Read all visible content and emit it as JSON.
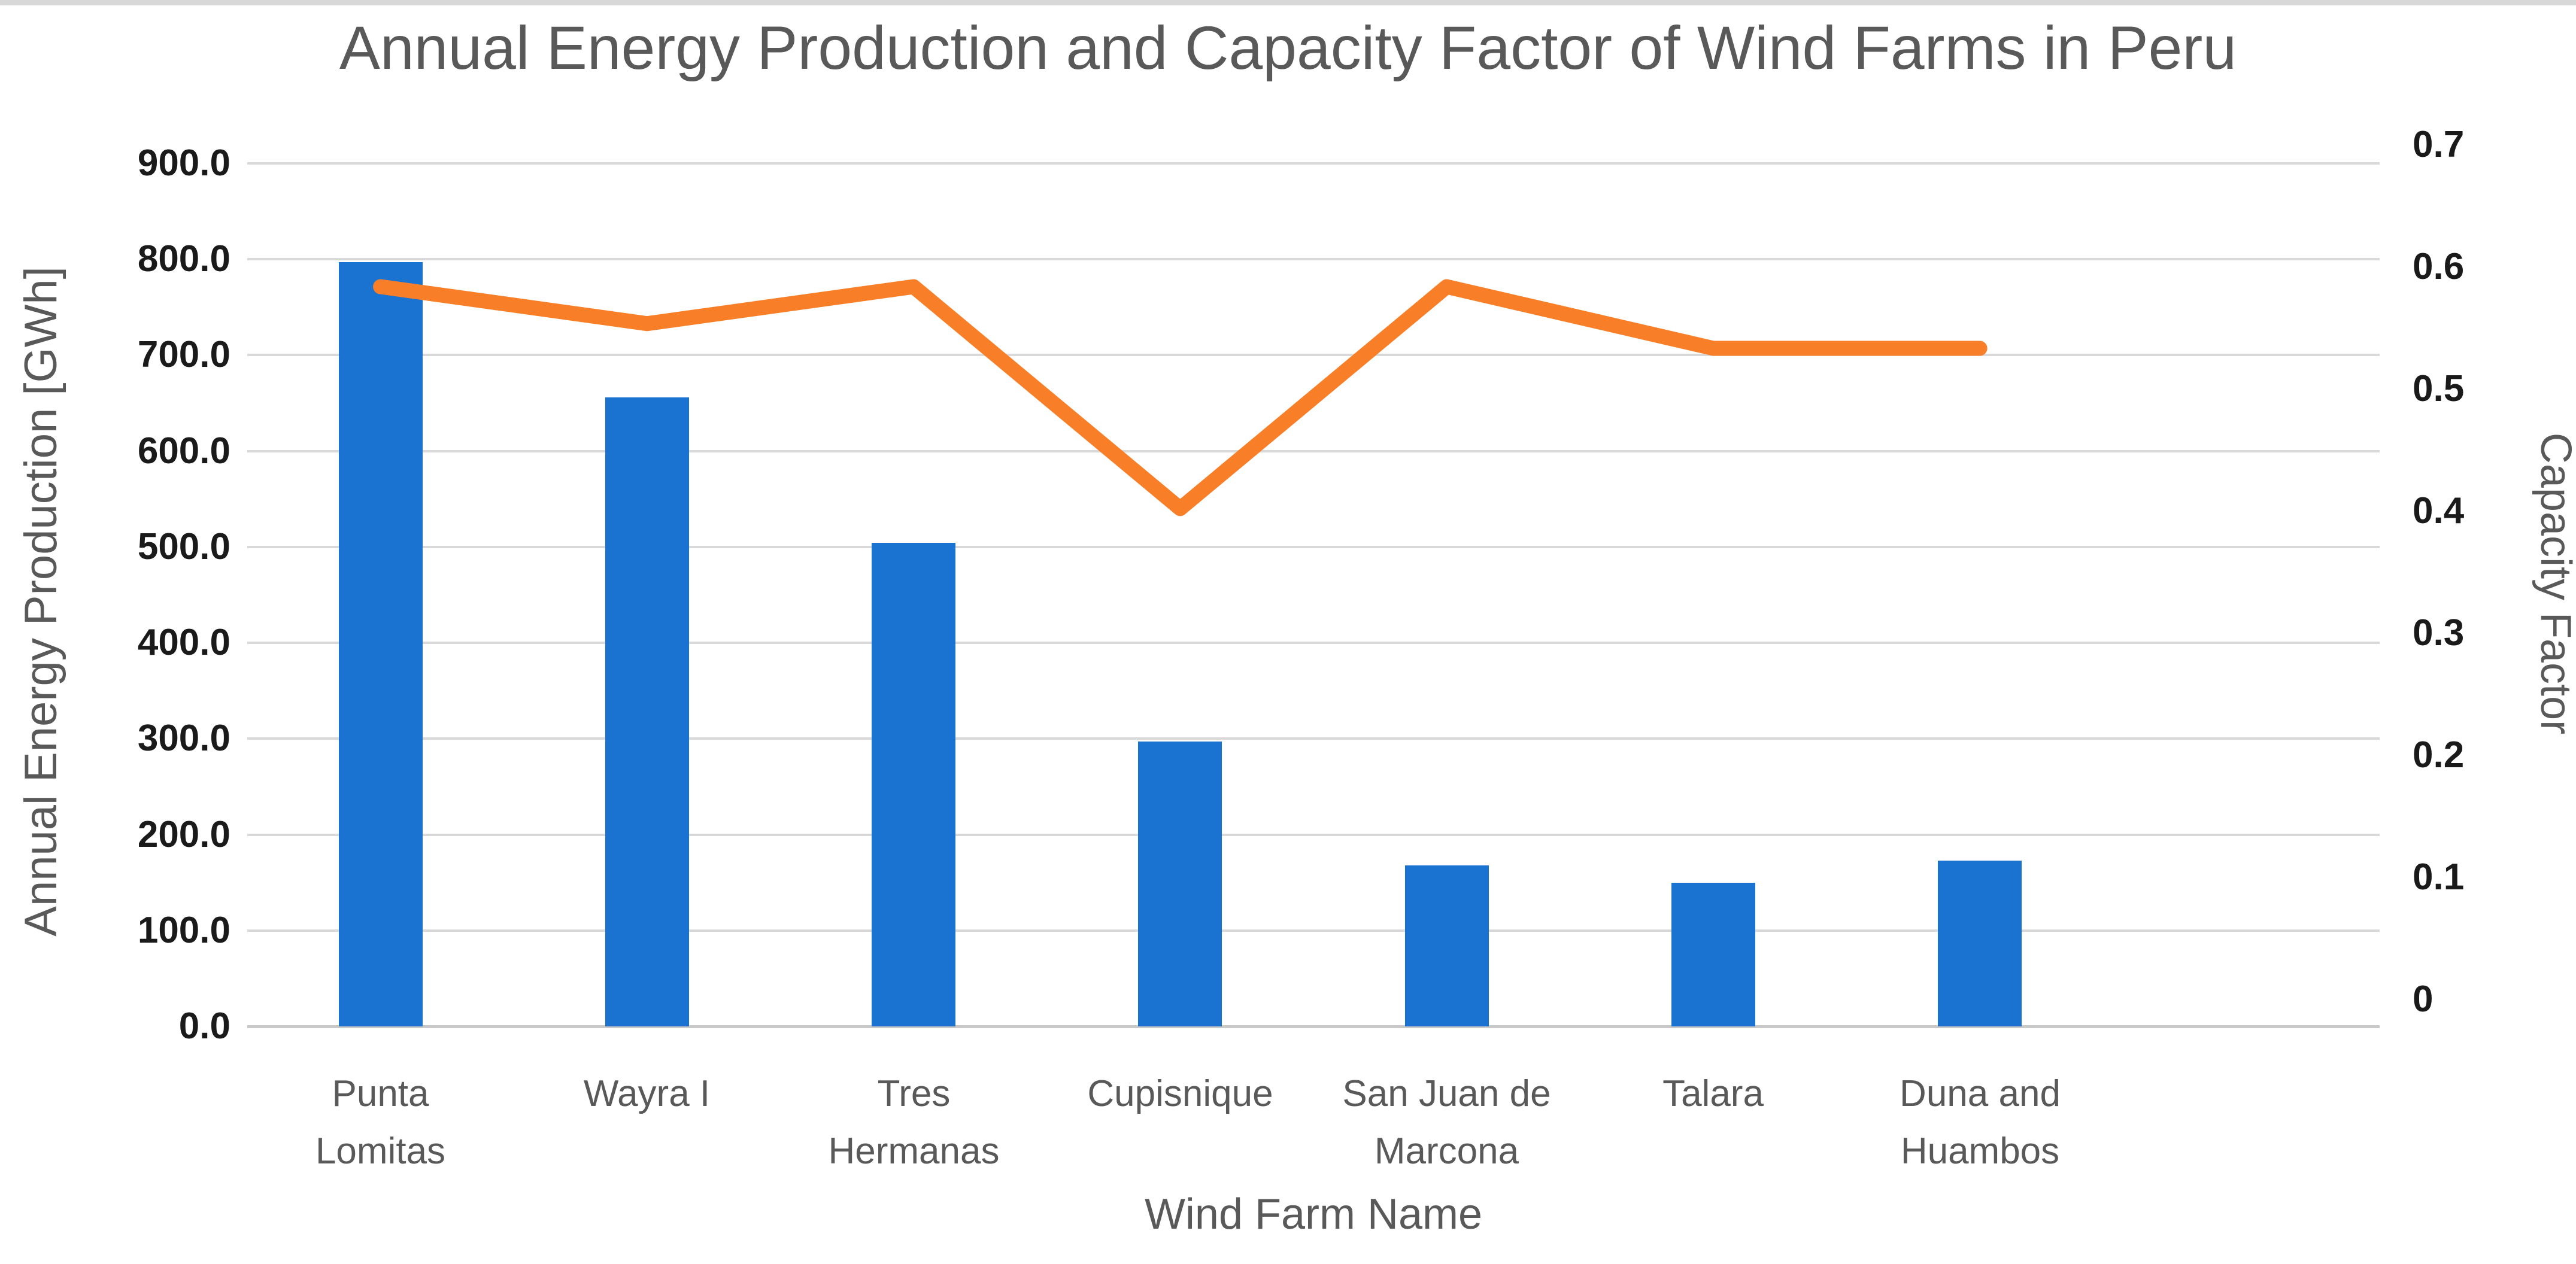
{
  "chart_data": {
    "type": "bar",
    "title": "Annual Energy Production and Capacity Factor of Wind Farms in Peru",
    "categories": [
      "Punta Lomitas",
      "Wayra I",
      "Tres Hermanas",
      "Cupisnique",
      "San Juan de Marcona",
      "Talara",
      "Duna and Huambos"
    ],
    "x_tick_lines": [
      [
        "Punta",
        "Lomitas"
      ],
      [
        "Wayra I"
      ],
      [
        "Tres",
        "Hermanas"
      ],
      [
        "Cupisnique"
      ],
      [
        "San Juan de",
        "Marcona"
      ],
      [
        "Talara"
      ],
      [
        "Duna and",
        "Huambos"
      ]
    ],
    "series": [
      {
        "name": "Annual Energy Production",
        "type": "bar",
        "axis": "left",
        "unit": "GWh",
        "color": "#1a73d0",
        "values": [
          797,
          656,
          504,
          297,
          168,
          150,
          173
        ]
      },
      {
        "name": "Capacity Factor",
        "type": "line",
        "axis": "right",
        "color": "#f87e27",
        "values": [
          0.6,
          0.57,
          0.6,
          0.42,
          0.6,
          0.55,
          0.55
        ]
      }
    ],
    "left_axis": {
      "label": "Annual Energy Production [GWh]",
      "min": 0,
      "max": 900,
      "step": 100,
      "tick_labels": [
        "900.0",
        "800.0",
        "700.0",
        "600.0",
        "500.0",
        "400.0",
        "300.0",
        "200.0",
        "100.0",
        "0.0"
      ]
    },
    "right_axis": {
      "label": "Capacity Factor",
      "min": 0,
      "max": 0.7,
      "step": 0.1,
      "tick_labels": [
        "0.7",
        "0.6",
        "0.5",
        "0.4",
        "0.3",
        "0.2",
        "0.1",
        "0"
      ]
    },
    "x_axis": {
      "label": "Wind Farm Name",
      "trailing_empty_slots": 1
    },
    "grid": true,
    "legend": false,
    "colors": {
      "bar": "#1a73d0",
      "line": "#f87e27",
      "gridline": "#d9d9d9",
      "tick_text": "#1a1a1a",
      "gray_text": "#595959"
    }
  }
}
